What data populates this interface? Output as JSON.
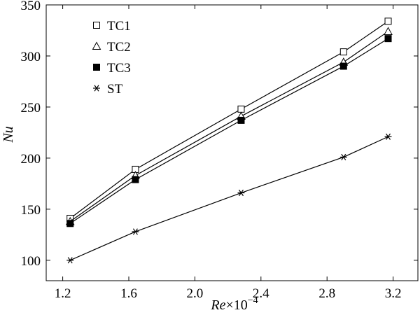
{
  "chart_data": {
    "type": "line",
    "title": "",
    "xlabel": {
      "var": "Re",
      "times": "×",
      "base": "10",
      "exp": "−4"
    },
    "ylabel": "Nu",
    "xlim": [
      1.1,
      3.35
    ],
    "ylim": [
      80,
      350
    ],
    "xticks": [
      1.2,
      1.6,
      2.0,
      2.4,
      2.8,
      3.2
    ],
    "xtick_labels": [
      "1.2",
      "1.6",
      "2.0",
      "2.4",
      "2.8",
      "3.2"
    ],
    "yticks": [
      100,
      150,
      200,
      250,
      300,
      350
    ],
    "ytick_labels": [
      "100",
      "150",
      "200",
      "250",
      "300",
      "350"
    ],
    "legend_position": "top-left",
    "series": [
      {
        "name": "TC1",
        "marker": "open-square",
        "x": [
          1.245,
          1.64,
          2.28,
          2.9,
          3.17
        ],
        "values": [
          141,
          189,
          248,
          304,
          334
        ]
      },
      {
        "name": "TC2",
        "marker": "open-triangle",
        "x": [
          1.245,
          1.64,
          2.28,
          2.9,
          3.17
        ],
        "values": [
          138,
          183,
          241,
          294,
          324
        ]
      },
      {
        "name": "TC3",
        "marker": "filled-square",
        "x": [
          1.245,
          1.64,
          2.28,
          2.9,
          3.17
        ],
        "values": [
          136,
          179,
          237,
          290,
          317
        ]
      },
      {
        "name": "ST",
        "marker": "asterisk",
        "x": [
          1.245,
          1.64,
          2.28,
          2.9,
          3.17
        ],
        "values": [
          100,
          128,
          166,
          201,
          221
        ]
      }
    ]
  }
}
